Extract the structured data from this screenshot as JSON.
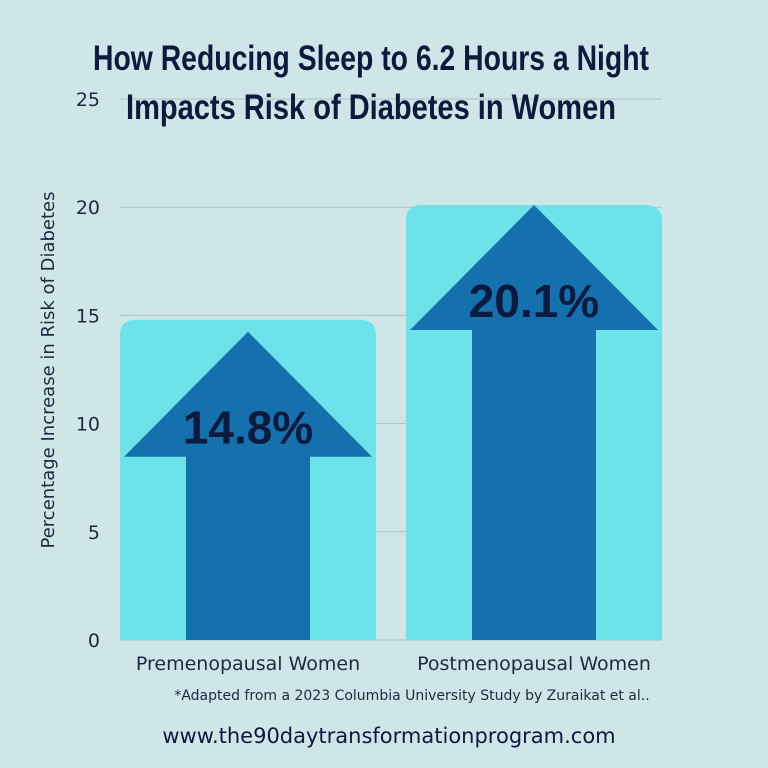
{
  "chart_data": {
    "type": "bar",
    "title_lines": [
      "How Reducing Sleep to 6.2 Hours a Night",
      "Impacts Risk of Diabetes in Women"
    ],
    "ylabel": "Percentage Increase in Risk of Diabetes",
    "categories": [
      "Premenopausal Women",
      "Postmenopausal Women"
    ],
    "values": [
      14.8,
      20.1
    ],
    "value_labels": [
      "14.8%",
      "20.1%"
    ],
    "ylim": [
      0,
      25
    ],
    "yticks": [
      0,
      5,
      10,
      15,
      20,
      25
    ],
    "grid": true,
    "colors": {
      "bar": "#6ce3e8",
      "arrow": "#1570ae",
      "grid": "#a9c3c8",
      "text": "#0c1a3d"
    }
  },
  "footnote": "*Adapted from a 2023 Columbia University Study by Zuraikat et al..",
  "website": "www.the90daytransformationprogram.com"
}
